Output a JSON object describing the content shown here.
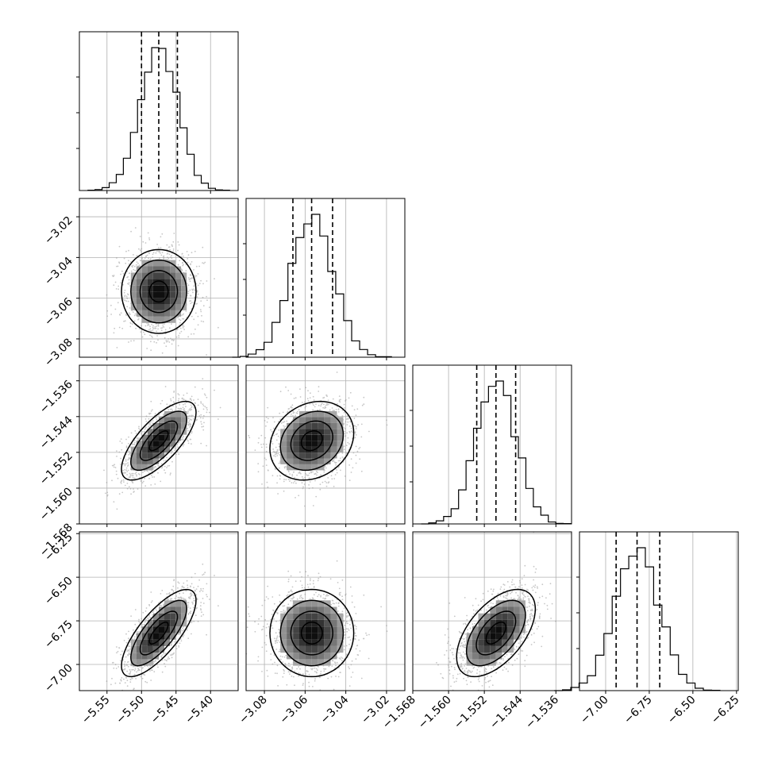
{
  "chart_data": {
    "type": "corner",
    "colors": {
      "ink": "#000000",
      "grid": "#b0b0b0",
      "points": "#9a9a9a",
      "background": "#ffffff"
    },
    "parameters": [
      {
        "ticks": [
          "−5.55",
          "−5.50",
          "−5.45",
          "−5.40"
        ],
        "tick_values": [
          -5.55,
          -5.5,
          -5.45,
          -5.4
        ],
        "range": [
          -5.59,
          -5.36
        ],
        "quantiles": [
          -5.5,
          -5.475,
          -5.448
        ],
        "mean": -5.475,
        "sd": 0.027
      },
      {
        "ticks": [
          "−3.08",
          "−3.06",
          "−3.04",
          "−3.02"
        ],
        "tick_values": [
          -3.08,
          -3.06,
          -3.04,
          -3.02
        ],
        "range": [
          -3.089,
          -3.011
        ],
        "quantiles": [
          -3.066,
          -3.0568,
          -3.0465
        ],
        "mean": -3.0567,
        "sd": 0.0103
      },
      {
        "ticks": [
          "−1.568",
          "−1.560",
          "−1.552",
          "−1.544",
          "−1.536"
        ],
        "tick_values": [
          -1.568,
          -1.56,
          -1.552,
          -1.544,
          -1.536
        ],
        "range": [
          -1.568,
          -1.5325
        ],
        "quantiles": [
          -1.5537,
          -1.5494,
          -1.545
        ],
        "mean": -1.5494,
        "sd": 0.0044
      },
      {
        "ticks": [
          "−7.00",
          "−6.75",
          "−6.50",
          "−6.25"
        ],
        "tick_values": [
          -7.0,
          -6.75,
          -6.5,
          -6.25
        ],
        "range": [
          -7.15,
          -6.24
        ],
        "quantiles": [
          -6.94,
          -6.82,
          -6.69
        ],
        "mean": -6.82,
        "sd": 0.125
      }
    ],
    "row_labels": [
      [],
      [
        "−3.02",
        "−3.04",
        "−3.06",
        "−3.08"
      ],
      [
        "−1.536",
        "−1.544",
        "−1.552",
        "−1.560",
        "−1.568"
      ],
      [
        "−6.25",
        "−6.50",
        "−6.75",
        "−7.00"
      ]
    ],
    "correlations": [
      [
        1.0,
        0.0,
        0.72,
        0.75
      ],
      [
        0.0,
        1.0,
        0.2,
        0.0
      ],
      [
        0.72,
        0.2,
        1.0,
        0.55
      ],
      [
        0.75,
        0.0,
        0.55,
        1.0
      ]
    ],
    "histogram_bins": 20,
    "contour_levels": 4,
    "grid": true
  }
}
